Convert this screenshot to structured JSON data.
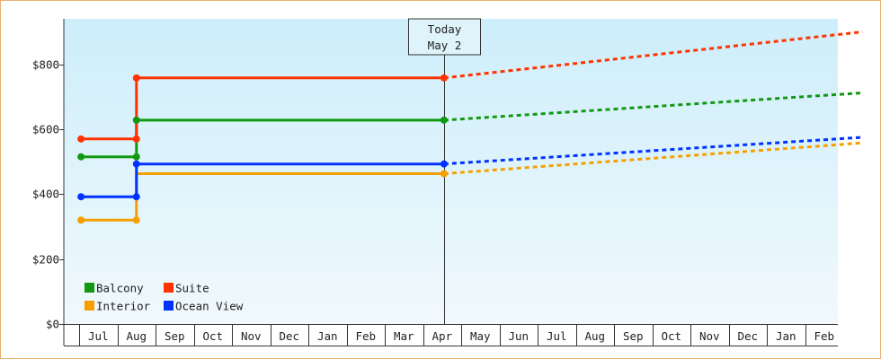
{
  "chart_data": {
    "type": "line",
    "title": "",
    "xlabel": "",
    "ylabel": "",
    "ylim": [
      0,
      940
    ],
    "yticks": [
      0,
      200,
      400,
      600,
      800
    ],
    "ytick_labels": [
      "$0",
      "$200",
      "$400",
      "$600",
      "$800"
    ],
    "x_months": [
      "Jul",
      "Aug",
      "Sep",
      "Oct",
      "Nov",
      "Dec",
      "Jan",
      "Feb",
      "Mar",
      "Apr",
      "May",
      "Jun",
      "Jul",
      "Aug",
      "Sep",
      "Oct",
      "Nov",
      "Dec",
      "Jan",
      "Feb"
    ],
    "x_domain_months": [
      -0.45,
      20.0
    ],
    "today": {
      "label_line1": "Today",
      "label_line2": "May 2",
      "x": 9.05
    },
    "grid": false,
    "legend_position": "bottom-left",
    "series": [
      {
        "name": "Balcony",
        "color": "#119911",
        "historical": [
          [
            -0.45,
            515
          ],
          [
            1.0,
            515
          ],
          [
            1.0,
            628
          ],
          [
            9.05,
            628
          ]
        ],
        "markers": [
          [
            -0.45,
            515
          ],
          [
            1.0,
            515
          ],
          [
            1.0,
            628
          ],
          [
            9.05,
            628
          ]
        ],
        "forecast": [
          [
            9.05,
            628
          ],
          [
            20.0,
            712
          ]
        ]
      },
      {
        "name": "Suite",
        "color": "#ff3300",
        "historical": [
          [
            -0.45,
            570
          ],
          [
            1.0,
            570
          ],
          [
            1.0,
            758
          ],
          [
            9.05,
            758
          ]
        ],
        "markers": [
          [
            -0.45,
            570
          ],
          [
            1.0,
            570
          ],
          [
            1.0,
            758
          ],
          [
            9.05,
            758
          ]
        ],
        "forecast": [
          [
            9.05,
            758
          ],
          [
            20.0,
            900
          ]
        ]
      },
      {
        "name": "Interior",
        "color": "#f5a000",
        "historical": [
          [
            -0.45,
            320
          ],
          [
            1.0,
            320
          ],
          [
            1.0,
            463
          ],
          [
            9.05,
            463
          ]
        ],
        "markers": [
          [
            -0.45,
            320
          ],
          [
            1.0,
            320
          ],
          [
            9.05,
            463
          ]
        ],
        "forecast": [
          [
            9.05,
            463
          ],
          [
            20.0,
            558
          ]
        ]
      },
      {
        "name": "Ocean View",
        "color": "#0033ff",
        "historical": [
          [
            -0.45,
            392
          ],
          [
            1.0,
            392
          ],
          [
            1.0,
            493
          ],
          [
            9.05,
            493
          ]
        ],
        "markers": [
          [
            -0.45,
            392
          ],
          [
            1.0,
            392
          ],
          [
            1.0,
            493
          ],
          [
            9.05,
            493
          ]
        ],
        "forecast": [
          [
            9.05,
            493
          ],
          [
            20.0,
            575
          ]
        ]
      }
    ]
  }
}
